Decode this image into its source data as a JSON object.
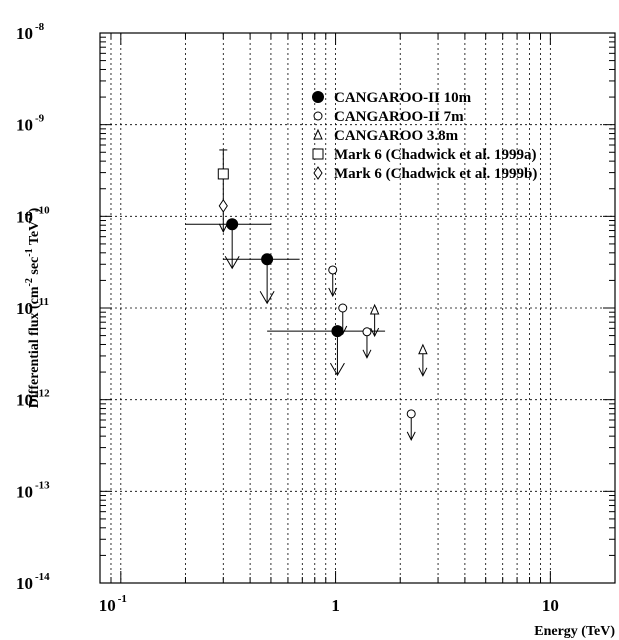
{
  "chart_data": {
    "type": "scatter",
    "title": "",
    "xlabel": "Energy (TeV)",
    "ylabel": "Differential flux (cm-2 sec-1 TeV-1)",
    "ylabel_parts": [
      "Differential flux (cm",
      "-2",
      " sec",
      "-1",
      " TeV",
      "-1",
      ")"
    ],
    "xscale": "log",
    "yscale": "log",
    "xlim": [
      0.08,
      20
    ],
    "ylim": [
      1e-14,
      1e-08
    ],
    "grid": true,
    "legend_position": "top-right",
    "x_tick_labels": [
      {
        "value": 0.1,
        "base": "10",
        "exp": "-1"
      },
      {
        "value": 1,
        "base": "1",
        "exp": ""
      },
      {
        "value": 10,
        "base": "10",
        "exp": ""
      }
    ],
    "y_tick_labels": [
      {
        "value": 1e-08,
        "base": "10",
        "exp": "-8"
      },
      {
        "value": 1e-09,
        "base": "10",
        "exp": "-9"
      },
      {
        "value": 1e-10,
        "base": "10",
        "exp": "-10"
      },
      {
        "value": 1e-11,
        "base": "10",
        "exp": "-11"
      },
      {
        "value": 1e-12,
        "base": "10",
        "exp": "-12"
      },
      {
        "value": 1e-13,
        "base": "10",
        "exp": "-13"
      },
      {
        "value": 1e-14,
        "base": "10",
        "exp": "-14"
      }
    ],
    "series": [
      {
        "name": "CANGAROO-II 10m",
        "marker": "filled-circle",
        "points": [
          {
            "x": 0.33,
            "y": 8.2e-11,
            "xerr": [
              0.2,
              0.5
            ],
            "upper_limit": true
          },
          {
            "x": 0.48,
            "y": 3.4e-11,
            "xerr": [
              0.3,
              0.68
            ],
            "upper_limit": true
          },
          {
            "x": 1.02,
            "y": 5.6e-12,
            "xerr": [
              0.48,
              1.7
            ],
            "upper_limit": true
          }
        ]
      },
      {
        "name": "CANGAROO-II 7m",
        "marker": "open-circle",
        "points": [
          {
            "x": 0.97,
            "y": 2.6e-11,
            "upper_limit": true
          },
          {
            "x": 1.08,
            "y": 1e-11,
            "upper_limit": true
          },
          {
            "x": 1.4,
            "y": 5.5e-12,
            "upper_limit": true
          },
          {
            "x": 2.25,
            "y": 7e-13,
            "upper_limit": true
          }
        ]
      },
      {
        "name": "CANGAROO 3.8m",
        "marker": "open-triangle",
        "points": [
          {
            "x": 1.52,
            "y": 9.5e-12,
            "upper_limit": true
          },
          {
            "x": 2.55,
            "y": 3.5e-12,
            "upper_limit": true
          }
        ]
      },
      {
        "name": "Mark 6 (Chadwick et al. 1999a)",
        "marker": "open-square",
        "points": [
          {
            "x": 0.3,
            "y": 2.9e-10,
            "yerr": [
              1.4e-10,
              5.3e-10
            ]
          }
        ]
      },
      {
        "name": "Mark 6 (Chadwick et al. 1999b)",
        "marker": "open-diamond",
        "points": [
          {
            "x": 0.3,
            "y": 1.3e-10,
            "upper_limit": true
          }
        ]
      }
    ]
  }
}
